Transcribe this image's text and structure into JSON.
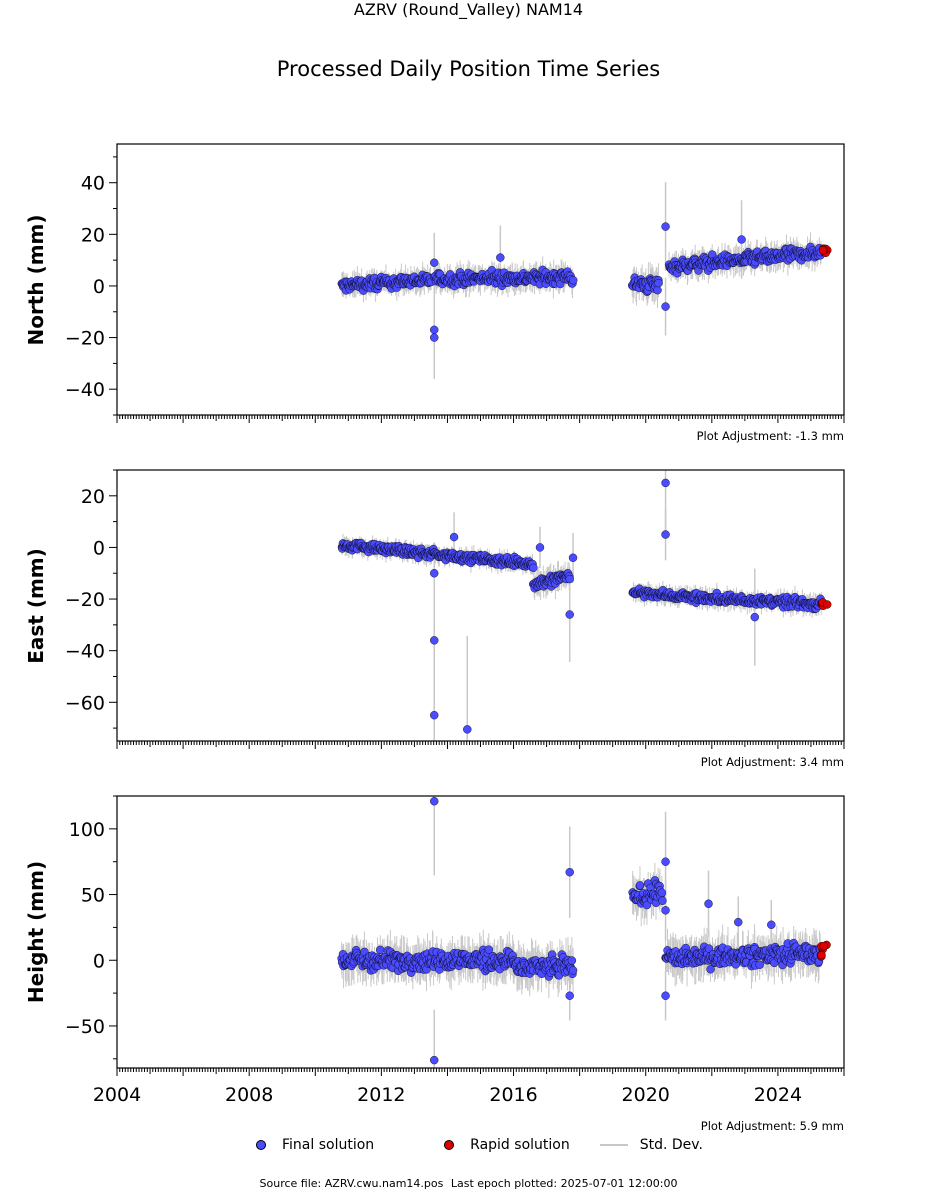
{
  "header": {
    "title": "AZRV (Round_Valley) NAM14",
    "subtitle": "Processed Daily Position Time Series"
  },
  "chart_data": [
    {
      "type": "scatter",
      "ylabel": "North (mm)",
      "ylim": [
        -50,
        55
      ],
      "yticks": [
        -40,
        -20,
        0,
        20,
        40
      ],
      "xlim": [
        2004,
        2026
      ],
      "plot_adjustment": "Plot Adjustment: -1.3 mm",
      "segments": [
        {
          "x": [
            2010.8,
            2013.5
          ],
          "y": [
            0,
            2.5
          ],
          "noise": 1.8
        },
        {
          "x": [
            2013.6,
            2017.8
          ],
          "y": [
            2.5,
            3.5
          ],
          "noise": 2.0
        },
        {
          "x": [
            2019.6,
            2020.4
          ],
          "y": [
            0.5,
            0.5
          ],
          "noise": 2.5
        },
        {
          "x": [
            2020.7,
            2025.3
          ],
          "y": [
            7.5,
            13
          ],
          "noise": 2.0
        }
      ],
      "outliers": [
        [
          2013.6,
          -17
        ],
        [
          2013.6,
          -20
        ],
        [
          2013.6,
          9
        ],
        [
          2020.6,
          23
        ],
        [
          2020.6,
          -8
        ],
        [
          2015.6,
          11
        ],
        [
          2022.9,
          18
        ]
      ],
      "rapid": {
        "x": [
          2025.3,
          2025.5
        ],
        "y": [
          12,
          14.5
        ]
      }
    },
    {
      "type": "scatter",
      "ylabel": "East (mm)",
      "ylim": [
        -75,
        30
      ],
      "yticks": [
        -60,
        -40,
        -20,
        0,
        20
      ],
      "xlim": [
        2004,
        2026
      ],
      "plot_adjustment": "Plot Adjustment: 3.4 mm",
      "segments": [
        {
          "x": [
            2010.8,
            2016.6
          ],
          "y": [
            1,
            -6.5
          ],
          "noise": 1.3
        },
        {
          "x": [
            2016.6,
            2017.7
          ],
          "y": [
            -14,
            -11
          ],
          "noise": 2.0
        },
        {
          "x": [
            2019.6,
            2021.0
          ],
          "y": [
            -17,
            -19
          ],
          "noise": 1.3
        },
        {
          "x": [
            2021.0,
            2025.3
          ],
          "y": [
            -19,
            -22
          ],
          "noise": 1.5
        }
      ],
      "outliers": [
        [
          2013.6,
          -36
        ],
        [
          2013.6,
          -65
        ],
        [
          2013.6,
          -10
        ],
        [
          2014.6,
          -70.5
        ],
        [
          2014.2,
          4
        ],
        [
          2017.7,
          -26
        ],
        [
          2017.8,
          -4
        ],
        [
          2016.8,
          0
        ],
        [
          2020.6,
          25
        ],
        [
          2020.6,
          5
        ],
        [
          2023.3,
          -27
        ]
      ],
      "rapid": {
        "x": [
          2025.3,
          2025.5
        ],
        "y": [
          -23,
          -21
        ]
      }
    },
    {
      "type": "scatter",
      "ylabel": "Height (mm)",
      "ylim": [
        -82,
        125
      ],
      "yticks": [
        -50,
        0,
        50,
        100
      ],
      "xlim": [
        2004,
        2026
      ],
      "xticks": [
        2004,
        2008,
        2012,
        2016,
        2020,
        2024
      ],
      "plot_adjustment": "Plot Adjustment: 5.9 mm",
      "segments": [
        {
          "x": [
            2010.8,
            2016.0
          ],
          "y": [
            0,
            0
          ],
          "noise": 6
        },
        {
          "x": [
            2016.0,
            2017.8
          ],
          "y": [
            -5,
            -5
          ],
          "noise": 6
        },
        {
          "x": [
            2019.6,
            2020.5
          ],
          "y": [
            48,
            52
          ],
          "noise": 6
        },
        {
          "x": [
            2020.6,
            2025.3
          ],
          "y": [
            2,
            5
          ],
          "noise": 6
        }
      ],
      "outliers": [
        [
          2013.6,
          121
        ],
        [
          2013.6,
          -76
        ],
        [
          2017.7,
          67
        ],
        [
          2017.7,
          -27
        ],
        [
          2020.6,
          75
        ],
        [
          2020.6,
          38
        ],
        [
          2020.6,
          -27
        ],
        [
          2021.9,
          43
        ],
        [
          2022.8,
          29
        ],
        [
          2023.8,
          27
        ]
      ],
      "rapid": {
        "x": [
          2025.3,
          2025.5
        ],
        "y": [
          2,
          12
        ]
      }
    }
  ],
  "legend": {
    "final": "Final solution",
    "rapid": "Rapid solution",
    "std": "Std. Dev."
  },
  "colors": {
    "final": "#4b4bff",
    "rapid": "#e00000",
    "std": "#c8c8c8"
  },
  "source": {
    "file": "Source file: AZRV.cwu.nam14.pos",
    "epoch": "Last epoch plotted: 2025-07-01 12:00:00"
  }
}
